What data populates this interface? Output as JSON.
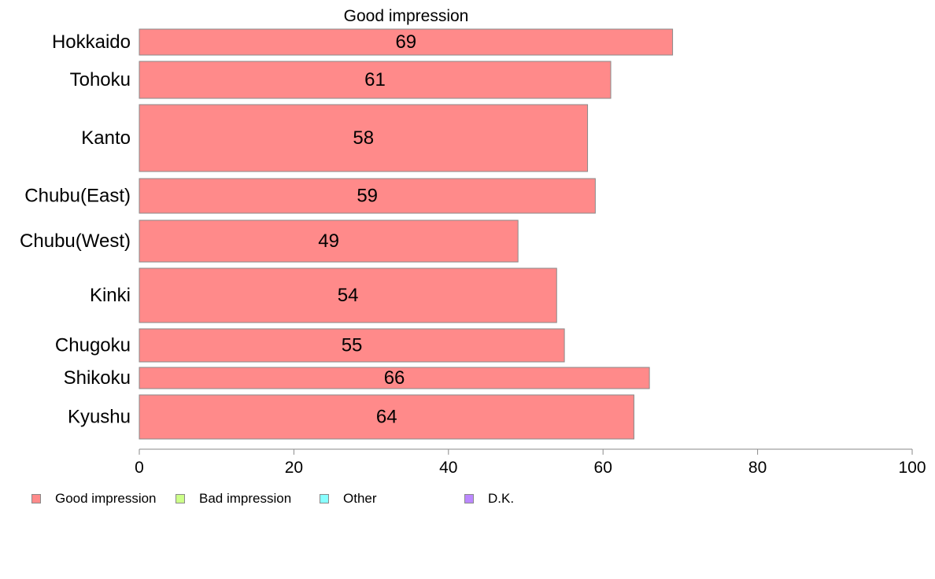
{
  "chart_data": {
    "type": "bar",
    "orientation": "horizontal",
    "title": "Good impression",
    "categories": [
      "Hokkaido",
      "Tohoku",
      "Kanto",
      "Chubu(East)",
      "Chubu(West)",
      "Kinki",
      "Chugoku",
      "Shikoku",
      "Kyushu"
    ],
    "series": [
      {
        "name": "Good impression",
        "values": [
          69,
          61,
          58,
          59,
          49,
          54,
          55,
          66,
          64
        ],
        "labels": [
          "69",
          "61",
          "58",
          "59",
          "49",
          "54",
          "55",
          "66",
          "64"
        ],
        "color": "#ff8a8a"
      }
    ],
    "xlim": [
      0,
      100
    ],
    "x_ticks": [
      "0",
      "20",
      "40",
      "60",
      "80",
      "100"
    ],
    "grid": false,
    "legend_position": "bottom-left"
  },
  "legend": [
    {
      "label": "Good impression",
      "color": "#ff8a8a"
    },
    {
      "label": "Bad impression",
      "color": "#ccff88"
    },
    {
      "label": "Other",
      "color": "#88ffff"
    },
    {
      "label": "D.K.",
      "color": "#bb88ff"
    }
  ]
}
